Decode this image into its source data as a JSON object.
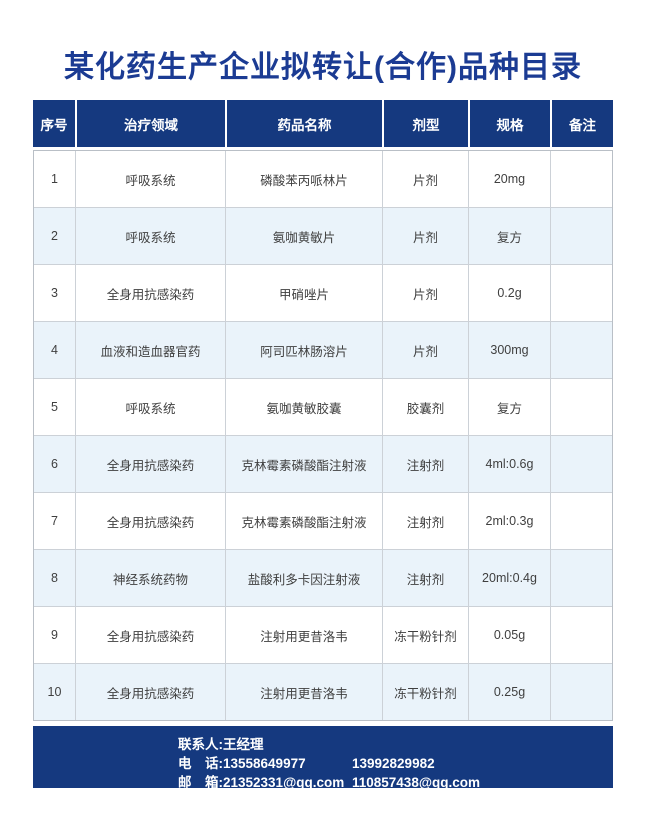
{
  "page": {
    "title": "某化药生产企业拟转让(合作)品种目录"
  },
  "colors": {
    "navy": "#15397f",
    "title_blue": "#1b3b93",
    "alt_row_blue": "#eaf3fa",
    "grid_gray": "#ccd1d7",
    "body_text": "#3f3f3f"
  },
  "table": {
    "headers": [
      "序号",
      "治疗领域",
      "药品名称",
      "剂型",
      "规格",
      "备注"
    ],
    "rows": [
      {
        "serial": "1",
        "therapy_area": "呼吸系统",
        "drug_name": "磷酸苯丙哌林片",
        "dosage_form": "片剂",
        "specification": "20mg",
        "remark": ""
      },
      {
        "serial": "2",
        "therapy_area": "呼吸系统",
        "drug_name": "氨咖黄敏片",
        "dosage_form": "片剂",
        "specification": "复方",
        "remark": ""
      },
      {
        "serial": "3",
        "therapy_area": "全身用抗感染药",
        "drug_name": "甲硝唑片",
        "dosage_form": "片剂",
        "specification": "0.2g",
        "remark": ""
      },
      {
        "serial": "4",
        "therapy_area": "血液和造血器官药",
        "drug_name": "阿司匹林肠溶片",
        "dosage_form": "片剂",
        "specification": "300mg",
        "remark": ""
      },
      {
        "serial": "5",
        "therapy_area": "呼吸系统",
        "drug_name": "氨咖黄敏胶囊",
        "dosage_form": "胶囊剂",
        "specification": "复方",
        "remark": ""
      },
      {
        "serial": "6",
        "therapy_area": "全身用抗感染药",
        "drug_name": "克林霉素磷酸酯注射液",
        "dosage_form": "注射剂",
        "specification": "4ml:0.6g",
        "remark": ""
      },
      {
        "serial": "7",
        "therapy_area": "全身用抗感染药",
        "drug_name": "克林霉素磷酸酯注射液",
        "dosage_form": "注射剂",
        "specification": "2ml:0.3g",
        "remark": ""
      },
      {
        "serial": "8",
        "therapy_area": "神经系统药物",
        "drug_name": "盐酸利多卡因注射液",
        "dosage_form": "注射剂",
        "specification": "20ml:0.4g",
        "remark": ""
      },
      {
        "serial": "9",
        "therapy_area": "全身用抗感染药",
        "drug_name": "注射用更昔洛韦",
        "dosage_form": "冻干粉针剂",
        "specification": "0.05g",
        "remark": ""
      },
      {
        "serial": "10",
        "therapy_area": "全身用抗感染药",
        "drug_name": "注射用更昔洛韦",
        "dosage_form": "冻干粉针剂",
        "specification": "0.25g",
        "remark": ""
      }
    ]
  },
  "footer": {
    "contact": "联系人:王经理",
    "phone_label": "电　话:",
    "phone1": "13558649977",
    "phone2": "13992829982",
    "email_label": "邮　箱:",
    "email1": "21352331@qq.com",
    "email2": "110857438@qq.com"
  }
}
